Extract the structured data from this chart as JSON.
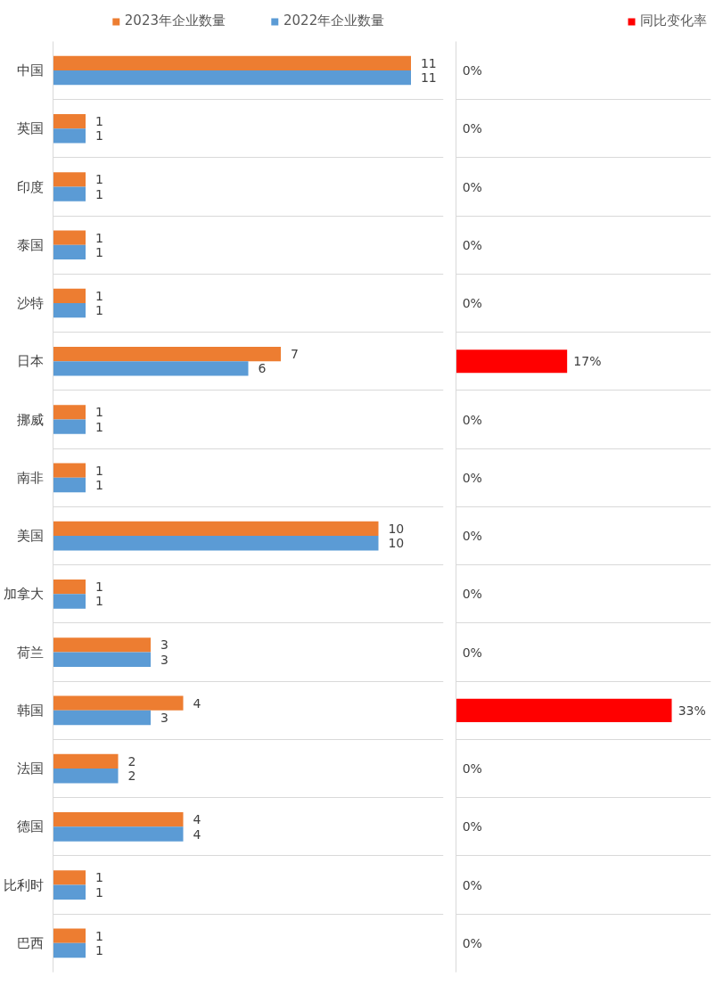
{
  "chart_data": [
    {
      "type": "bar",
      "orientation": "horizontal",
      "categories": [
        "中国",
        "英国",
        "印度",
        "泰国",
        "沙特",
        "日本",
        "挪威",
        "南非",
        "美国",
        "加拿大",
        "荷兰",
        "韩国",
        "法国",
        "德国",
        "比利时",
        "巴西"
      ],
      "series": [
        {
          "name": "2023年企业数量",
          "color": "#ed7d31",
          "values": [
            11,
            1,
            1,
            1,
            1,
            7,
            1,
            1,
            10,
            1,
            3,
            4,
            2,
            4,
            1,
            1
          ]
        },
        {
          "name": "2022年企业数量",
          "color": "#5b9bd5",
          "values": [
            11,
            1,
            1,
            1,
            1,
            6,
            1,
            1,
            10,
            1,
            3,
            3,
            2,
            4,
            1,
            1
          ]
        }
      ],
      "xlim": [
        0,
        12
      ],
      "data_labels": true,
      "grid": "y",
      "legend": "top",
      "tick_labels": "y"
    },
    {
      "type": "bar",
      "orientation": "horizontal",
      "categories": [
        null,
        null,
        null,
        null,
        null,
        null,
        null,
        null,
        null,
        null,
        null,
        null,
        null,
        null,
        null,
        null
      ],
      "series": [
        {
          "name": "同比变化率",
          "color": "#ff0000",
          "values": [
            0,
            0,
            0,
            0,
            0,
            17,
            0,
            0,
            0,
            0,
            0,
            33,
            0,
            0,
            0,
            0
          ],
          "value_labels": [
            "0%",
            "0%",
            "0%",
            "0%",
            "0%",
            "17%",
            "0%",
            "0%",
            "0%",
            "0%",
            "0%",
            "33%",
            "0%",
            "0%",
            "0%",
            "0%"
          ]
        }
      ],
      "xlim": [
        0,
        39
      ],
      "grid": "y",
      "legend": "top right",
      "tick_labels": "y"
    }
  ]
}
